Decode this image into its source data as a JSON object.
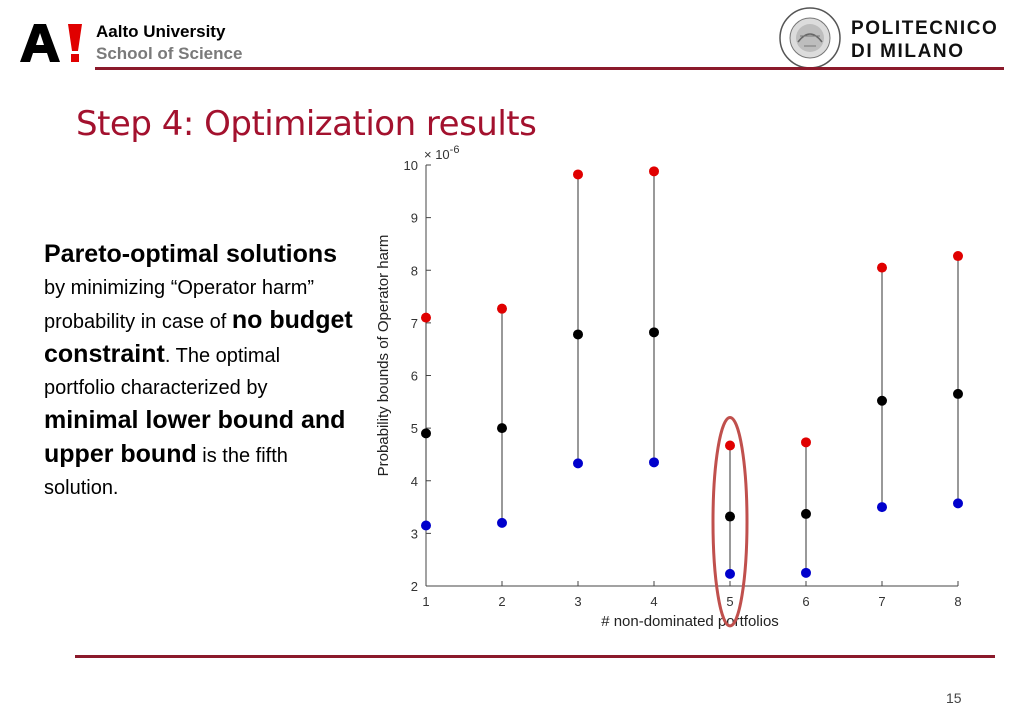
{
  "header": {
    "aalto_name": "Aalto University",
    "aalto_school": "School of Science",
    "polimi_line1": "POLITECNICO",
    "polimi_line2": "DI MILANO",
    "seal_text_top": "POLITECNICO",
    "seal_text_bottom": "MILANO"
  },
  "slide": {
    "title": "Step 4: Optimization results",
    "page_number": "15",
    "body": [
      {
        "text": "Pareto-optimal solutions",
        "bold": true
      },
      {
        "text": " by minimizing “Operator harm” probability in case of ",
        "bold": false
      },
      {
        "text": "no budget constraint",
        "bold": true
      },
      {
        "text": ". The optimal portfolio characterized by ",
        "bold": false
      },
      {
        "text": "minimal lower bound and upper bound",
        "bold": true
      },
      {
        "text": " is the fifth solution.",
        "bold": false
      }
    ]
  },
  "chart_data": {
    "type": "scatter",
    "xlabel": "# non-dominated portfolios",
    "ylabel": "Probability bounds of Operator harm",
    "exponent_label": "× 10",
    "exponent_power": "-6",
    "xlim": [
      1,
      8
    ],
    "ylim": [
      2,
      10
    ],
    "xticks": [
      1,
      2,
      3,
      4,
      5,
      6,
      7,
      8
    ],
    "yticks": [
      2,
      3,
      4,
      5,
      6,
      7,
      8,
      9,
      10
    ],
    "x": [
      1,
      2,
      3,
      4,
      5,
      6,
      7,
      8
    ],
    "series": [
      {
        "values": [
          7.1,
          7.27,
          9.82,
          9.88,
          4.67,
          4.73,
          8.05,
          8.27
        ],
        "color": "#e00000"
      },
      {
        "values": [
          4.9,
          5.0,
          6.78,
          6.82,
          3.32,
          3.37,
          5.52,
          5.65
        ],
        "color": "#000000"
      },
      {
        "values": [
          3.15,
          3.2,
          4.33,
          4.35,
          2.23,
          2.25,
          3.5,
          3.57
        ],
        "color": "#0000cc"
      }
    ],
    "highlight": {
      "x": 5,
      "color": "#c0504d"
    },
    "grid": false,
    "legend": "none"
  }
}
